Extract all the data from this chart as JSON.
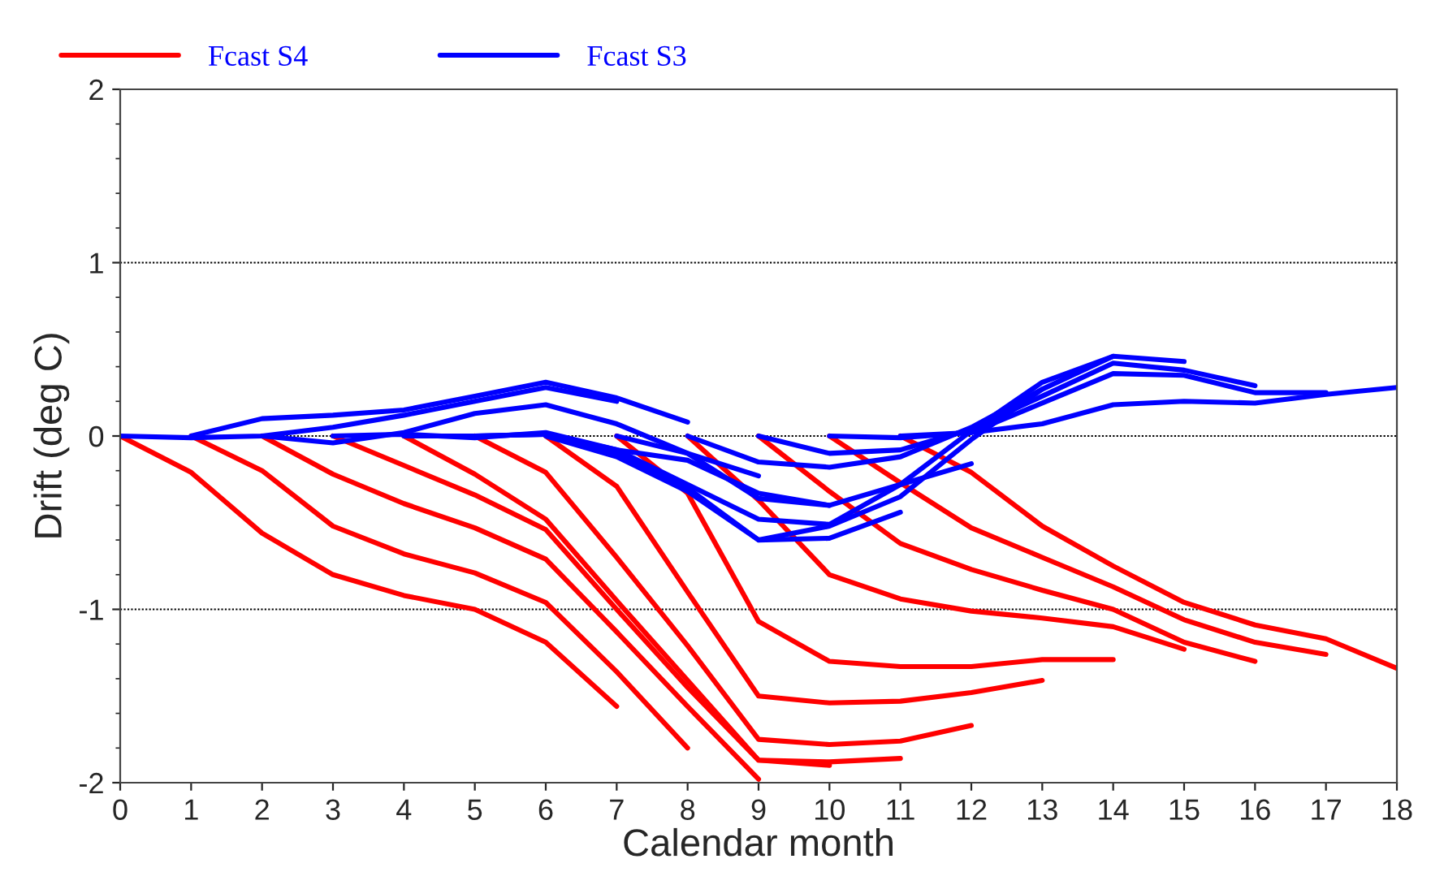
{
  "chart_data": {
    "type": "line",
    "xlabel": "Calendar month",
    "ylabel": "Drift (deg C)",
    "xlim": [
      0,
      18
    ],
    "xticks": [
      0,
      1,
      2,
      3,
      4,
      5,
      6,
      7,
      8,
      9,
      10,
      11,
      12,
      13,
      14,
      15,
      16,
      17,
      18
    ],
    "ylim": [
      -2,
      2
    ],
    "yticks": [
      -2,
      -1,
      0,
      1,
      2
    ],
    "grid": "y",
    "legend": "top left",
    "marker": "none",
    "line_style": "solid",
    "series": [
      {
        "name": "Fcast S4",
        "color": "#ff0000",
        "x": [
          0,
          1,
          2,
          3,
          4,
          5,
          6,
          7
        ],
        "values": [
          0,
          -0.21,
          -0.56,
          -0.8,
          -0.92,
          -1.0,
          -1.19,
          -1.56
        ]
      },
      {
        "color": "#ff0000",
        "x": [
          1,
          2,
          3,
          4,
          5,
          6,
          7,
          8
        ],
        "values": [
          0,
          -0.2,
          -0.52,
          -0.68,
          -0.79,
          -0.96,
          -1.36,
          -1.8
        ]
      },
      {
        "color": "#ff0000",
        "x": [
          2,
          3,
          4,
          5,
          6,
          7,
          8,
          9
        ],
        "values": [
          0,
          -0.22,
          -0.39,
          -0.53,
          -0.71,
          -1.13,
          -1.56,
          -1.98
        ]
      },
      {
        "color": "#ff0000",
        "x": [
          3,
          4,
          5,
          6,
          7,
          8,
          9,
          10
        ],
        "values": [
          0,
          -0.17,
          -0.34,
          -0.54,
          -1.0,
          -1.45,
          -1.87,
          -1.9
        ]
      },
      {
        "color": "#ff0000",
        "x": [
          4,
          5,
          6,
          7,
          8,
          9,
          10,
          11
        ],
        "values": [
          0,
          -0.22,
          -0.48,
          -0.95,
          -1.41,
          -1.87,
          -1.88,
          -1.86
        ]
      },
      {
        "color": "#ff0000",
        "x": [
          5,
          6,
          7,
          8,
          9,
          10,
          11,
          12
        ],
        "values": [
          0,
          -0.21,
          -0.7,
          -1.21,
          -1.75,
          -1.78,
          -1.76,
          -1.67
        ]
      },
      {
        "color": "#ff0000",
        "x": [
          6,
          7,
          8,
          9,
          10,
          11,
          12,
          13
        ],
        "values": [
          0,
          -0.29,
          -0.9,
          -1.5,
          -1.54,
          -1.53,
          -1.48,
          -1.41
        ]
      },
      {
        "color": "#ff0000",
        "x": [
          7,
          8,
          9,
          10,
          11,
          12,
          13,
          14
        ],
        "values": [
          0,
          -0.33,
          -1.07,
          -1.3,
          -1.33,
          -1.33,
          -1.29,
          -1.29
        ]
      },
      {
        "color": "#ff0000",
        "x": [
          8,
          9,
          10,
          11,
          12,
          13,
          14,
          15
        ],
        "values": [
          0,
          -0.37,
          -0.8,
          -0.94,
          -1.01,
          -1.05,
          -1.1,
          -1.23
        ]
      },
      {
        "color": "#ff0000",
        "x": [
          9,
          10,
          11,
          12,
          13,
          14,
          15,
          16
        ],
        "values": [
          0,
          -0.32,
          -0.62,
          -0.77,
          -0.89,
          -1.0,
          -1.19,
          -1.3
        ]
      },
      {
        "color": "#ff0000",
        "x": [
          10,
          11,
          12,
          13,
          14,
          15,
          16,
          17
        ],
        "values": [
          0,
          -0.27,
          -0.53,
          -0.7,
          -0.87,
          -1.06,
          -1.19,
          -1.26
        ]
      },
      {
        "color": "#ff0000",
        "x": [
          11,
          12,
          13,
          14,
          15,
          16,
          17,
          18
        ],
        "values": [
          0,
          -0.21,
          -0.52,
          -0.75,
          -0.96,
          -1.09,
          -1.17,
          -1.34
        ]
      },
      {
        "name": "Fcast S3",
        "color": "#0000ff",
        "x": [
          0,
          1,
          2,
          3,
          4,
          5,
          6,
          7
        ],
        "values": [
          0,
          -0.01,
          0,
          0.05,
          0.12,
          0.2,
          0.28,
          0.2
        ]
      },
      {
        "color": "#0000ff",
        "x": [
          1,
          2,
          3,
          4,
          5,
          6,
          7,
          8
        ],
        "values": [
          0,
          0.1,
          0.12,
          0.15,
          0.23,
          0.31,
          0.22,
          0.08
        ]
      },
      {
        "color": "#0000ff",
        "x": [
          2,
          3,
          4,
          5,
          6,
          7,
          8,
          9
        ],
        "values": [
          0,
          -0.04,
          0.02,
          0.13,
          0.18,
          0.07,
          -0.1,
          -0.23
        ]
      },
      {
        "color": "#0000ff",
        "x": [
          3,
          4,
          5,
          6,
          7,
          8,
          9,
          10
        ],
        "values": [
          0,
          0.01,
          -0.01,
          0.02,
          -0.08,
          -0.14,
          -0.33,
          -0.4
        ]
      },
      {
        "color": "#0000ff",
        "x": [
          4,
          5,
          6,
          7,
          8,
          9,
          10,
          11
        ],
        "values": [
          0,
          0,
          0.01,
          -0.1,
          -0.3,
          -0.6,
          -0.59,
          -0.44
        ]
      },
      {
        "color": "#0000ff",
        "x": [
          5,
          6,
          7,
          8,
          9,
          10,
          11,
          12
        ],
        "values": [
          0,
          0.01,
          -0.08,
          -0.28,
          -0.48,
          -0.51,
          -0.28,
          -0.16
        ]
      },
      {
        "color": "#0000ff",
        "x": [
          6,
          7,
          8,
          9,
          10,
          11,
          12,
          13
        ],
        "values": [
          0,
          -0.12,
          -0.32,
          -0.6,
          -0.52,
          -0.35,
          -0.02,
          0.27
        ]
      },
      {
        "color": "#0000ff",
        "x": [
          7,
          8,
          9,
          10,
          11,
          12,
          13,
          14
        ],
        "values": [
          0,
          -0.1,
          -0.36,
          -0.4,
          -0.28,
          0.03,
          0.31,
          0.46
        ]
      },
      {
        "color": "#0000ff",
        "x": [
          8,
          9,
          10,
          11,
          12,
          13,
          14,
          15
        ],
        "values": [
          0,
          -0.15,
          -0.18,
          -0.12,
          0.05,
          0.27,
          0.46,
          0.43
        ]
      },
      {
        "color": "#0000ff",
        "x": [
          9,
          10,
          11,
          12,
          13,
          14,
          15,
          16
        ],
        "values": [
          0,
          -0.1,
          -0.08,
          0.04,
          0.23,
          0.42,
          0.38,
          0.29
        ]
      },
      {
        "color": "#0000ff",
        "x": [
          10,
          11,
          12,
          13,
          14,
          15,
          16,
          17
        ],
        "values": [
          0,
          -0.01,
          0.02,
          0.19,
          0.36,
          0.35,
          0.25,
          0.25
        ]
      },
      {
        "color": "#0000ff",
        "x": [
          11,
          12,
          13,
          14,
          15,
          16,
          17,
          18
        ],
        "values": [
          0,
          0.02,
          0.07,
          0.18,
          0.2,
          0.19,
          0.24,
          0.28
        ]
      }
    ]
  }
}
